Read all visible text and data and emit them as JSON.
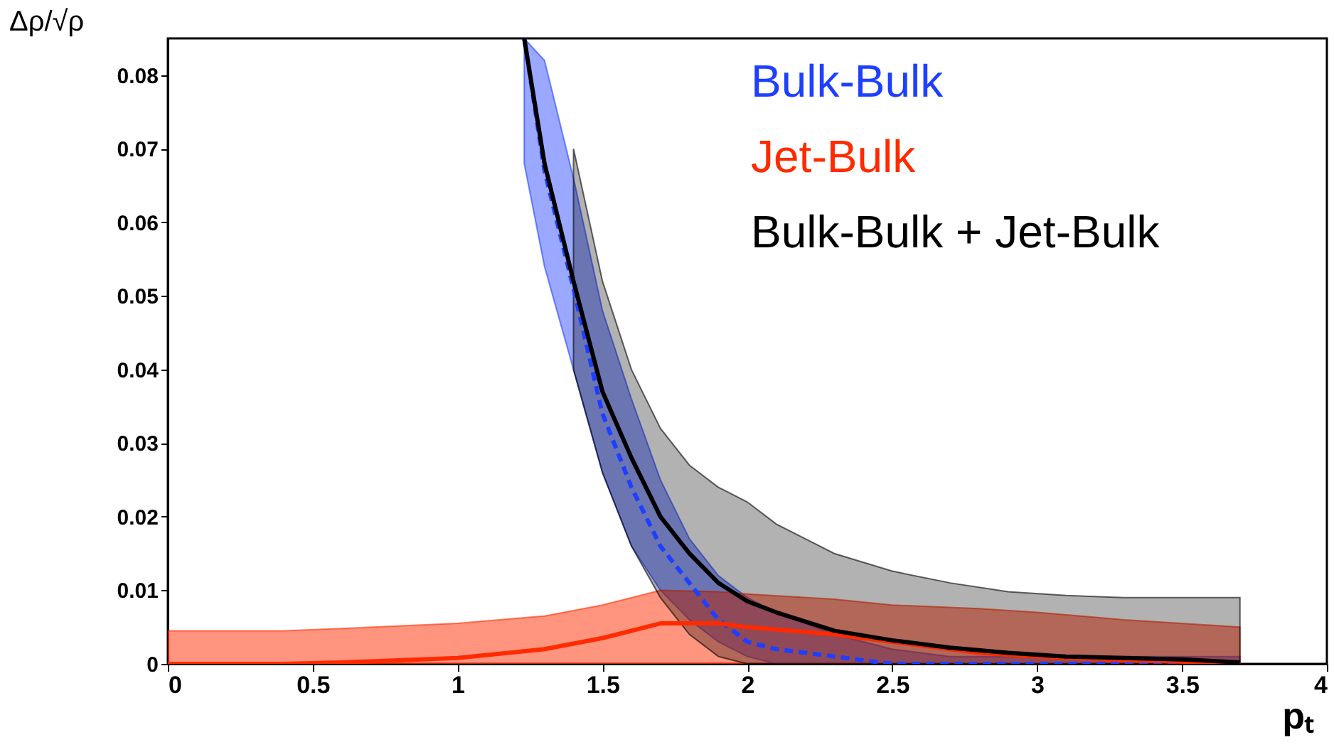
{
  "chart_data": {
    "type": "line",
    "xlabel": "pₜ",
    "ylabel": "Δρ/√ρ",
    "xlim": [
      0,
      4
    ],
    "ylim": [
      0,
      0.085
    ],
    "xticks": [
      0,
      0.5,
      1,
      1.5,
      2,
      2.5,
      3,
      3.5,
      4
    ],
    "yticks": [
      0,
      0.01,
      0.02,
      0.03,
      0.04,
      0.05,
      0.06,
      0.07,
      0.08
    ],
    "legend": "top right",
    "series": [
      {
        "name": "Bulk-Bulk",
        "color": "#1f3fff",
        "line_style": "dashed",
        "x": [
          1.23,
          1.3,
          1.4,
          1.5,
          1.6,
          1.7,
          1.8,
          1.9,
          2.0,
          2.1,
          2.3,
          2.5,
          2.7,
          2.9,
          3.1,
          3.3,
          3.5,
          3.7
        ],
        "values": [
          0.085,
          0.067,
          0.051,
          0.034,
          0.024,
          0.016,
          0.011,
          0.006,
          0.003,
          0.002,
          0.001,
          0,
          0,
          0,
          0,
          0,
          0,
          0
        ],
        "upper": [
          0.085,
          0.082,
          0.066,
          0.048,
          0.036,
          0.025,
          0.017,
          0.012,
          0.009,
          0.007,
          0.004,
          0.002,
          0.001,
          0.001,
          0.001,
          0.001,
          0.001,
          0.001
        ],
        "lower": [
          0.068,
          0.054,
          0.04,
          0.026,
          0.016,
          0.01,
          0.006,
          0.003,
          0.001,
          0,
          0,
          0,
          0,
          0,
          0,
          0,
          0,
          0
        ]
      },
      {
        "name": "Jet-Bulk",
        "color": "#ff2a00",
        "x": [
          0,
          0.4,
          0.6,
          1.0,
          1.3,
          1.5,
          1.7,
          1.9,
          2.0,
          2.3,
          2.5,
          2.8,
          3.0,
          3.3,
          3.7
        ],
        "values": [
          0,
          0,
          0.0002,
          0.0008,
          0.002,
          0.0035,
          0.0055,
          0.0055,
          0.005,
          0.004,
          0.003,
          0.0015,
          0.001,
          0.0005,
          0.0001
        ],
        "upper": [
          0.0045,
          0.0045,
          0.0048,
          0.0055,
          0.0065,
          0.008,
          0.01,
          0.0098,
          0.0095,
          0.0088,
          0.008,
          0.0075,
          0.007,
          0.006,
          0.005
        ],
        "lower": [
          0,
          0,
          0,
          0,
          0,
          0,
          0,
          0,
          0,
          0,
          0,
          0,
          0,
          0,
          0
        ]
      },
      {
        "name": "Bulk-Bulk + Jet-Bulk",
        "color": "#000000",
        "x": [
          1.23,
          1.3,
          1.4,
          1.5,
          1.6,
          1.7,
          1.8,
          1.9,
          2.0,
          2.1,
          2.3,
          2.5,
          2.7,
          2.9,
          3.1,
          3.3,
          3.5,
          3.7
        ],
        "values": [
          0.085,
          0.068,
          0.052,
          0.037,
          0.028,
          0.02,
          0.015,
          0.011,
          0.0085,
          0.007,
          0.0045,
          0.0032,
          0.0022,
          0.0015,
          0.001,
          0.0008,
          0.0006,
          0.0002
        ],
        "upper": [
          null,
          null,
          0.07,
          0.052,
          0.04,
          0.032,
          0.027,
          0.024,
          0.022,
          0.019,
          0.015,
          0.0126,
          0.011,
          0.0098,
          0.0093,
          0.009,
          0.009,
          0.009
        ],
        "lower": [
          null,
          null,
          0.04,
          0.026,
          0.016,
          0.009,
          0.004,
          0.001,
          0,
          0,
          0,
          0,
          0,
          0,
          0,
          0,
          0,
          0
        ]
      }
    ]
  }
}
